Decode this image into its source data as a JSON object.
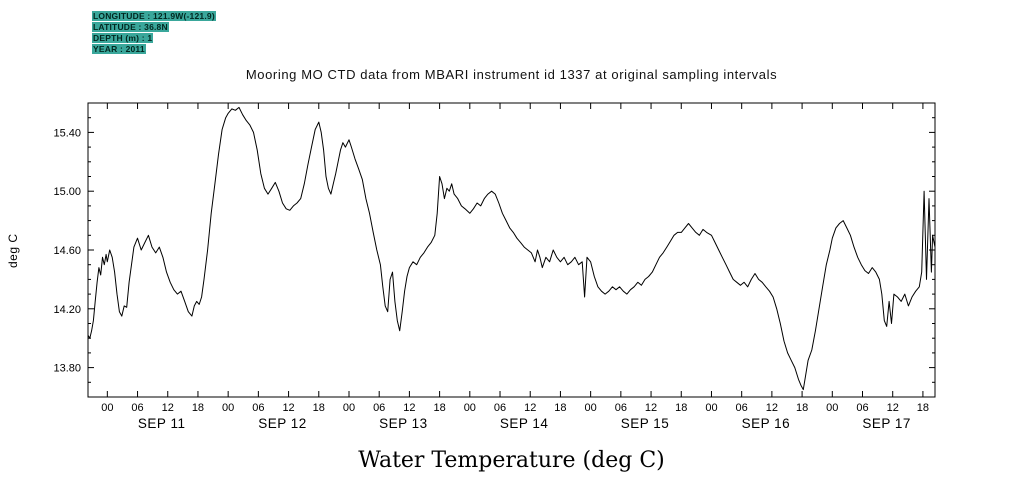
{
  "header": {
    "lines": [
      "LONGITUDE : 121.9W(-121.9)",
      "LATITUDE : 36.8N",
      "DEPTH (m) : 1",
      "YEAR : 2011"
    ]
  },
  "title": "Mooring MO CTD data from MBARI instrument id 1337 at original sampling intervals",
  "chart_data": {
    "type": "line",
    "title": "Mooring MO CTD data from MBARI instrument id 1337 at original sampling intervals",
    "xlabel": "Water Temperature (deg C)",
    "ylabel": "deg C",
    "ylim": [
      13.6,
      15.6
    ],
    "xlim_days": [
      -0.16,
      6.85
    ],
    "grid": false,
    "line_color": "#000000",
    "ytick_values": [
      13.8,
      14.2,
      14.6,
      15.0,
      15.4
    ],
    "hour_labels": [
      "00",
      "06",
      "12",
      "18"
    ],
    "day_labels": [
      "SEP 11",
      "SEP 12",
      "SEP 13",
      "SEP 14",
      "SEP 15",
      "SEP 16",
      "SEP 17"
    ],
    "series": [
      {
        "name": "water_temperature_degC",
        "points": [
          [
            -0.16,
            14.02
          ],
          [
            -0.145,
            14.0
          ],
          [
            -0.13,
            14.05
          ],
          [
            -0.115,
            14.12
          ],
          [
            -0.1,
            14.25
          ],
          [
            -0.085,
            14.38
          ],
          [
            -0.07,
            14.48
          ],
          [
            -0.055,
            14.43
          ],
          [
            -0.04,
            14.55
          ],
          [
            -0.025,
            14.5
          ],
          [
            -0.01,
            14.57
          ],
          [
            0.0,
            14.52
          ],
          [
            0.02,
            14.6
          ],
          [
            0.04,
            14.55
          ],
          [
            0.06,
            14.45
          ],
          [
            0.08,
            14.3
          ],
          [
            0.1,
            14.18
          ],
          [
            0.12,
            14.15
          ],
          [
            0.14,
            14.22
          ],
          [
            0.16,
            14.21
          ],
          [
            0.18,
            14.38
          ],
          [
            0.2,
            14.5
          ],
          [
            0.22,
            14.62
          ],
          [
            0.25,
            14.68
          ],
          [
            0.28,
            14.6
          ],
          [
            0.31,
            14.65
          ],
          [
            0.34,
            14.7
          ],
          [
            0.37,
            14.62
          ],
          [
            0.4,
            14.58
          ],
          [
            0.43,
            14.62
          ],
          [
            0.46,
            14.55
          ],
          [
            0.49,
            14.45
          ],
          [
            0.52,
            14.38
          ],
          [
            0.55,
            14.33
          ],
          [
            0.58,
            14.3
          ],
          [
            0.61,
            14.32
          ],
          [
            0.64,
            14.25
          ],
          [
            0.67,
            14.18
          ],
          [
            0.7,
            14.15
          ],
          [
            0.72,
            14.22
          ],
          [
            0.74,
            14.25
          ],
          [
            0.76,
            14.23
          ],
          [
            0.78,
            14.28
          ],
          [
            0.8,
            14.4
          ],
          [
            0.83,
            14.6
          ],
          [
            0.86,
            14.85
          ],
          [
            0.89,
            15.05
          ],
          [
            0.92,
            15.25
          ],
          [
            0.95,
            15.42
          ],
          [
            0.98,
            15.5
          ],
          [
            1.0,
            15.53
          ],
          [
            1.03,
            15.56
          ],
          [
            1.06,
            15.55
          ],
          [
            1.09,
            15.57
          ],
          [
            1.12,
            15.52
          ],
          [
            1.15,
            15.48
          ],
          [
            1.18,
            15.45
          ],
          [
            1.21,
            15.4
          ],
          [
            1.24,
            15.28
          ],
          [
            1.27,
            15.12
          ],
          [
            1.3,
            15.02
          ],
          [
            1.33,
            14.98
          ],
          [
            1.36,
            15.02
          ],
          [
            1.39,
            15.06
          ],
          [
            1.42,
            15.0
          ],
          [
            1.45,
            14.92
          ],
          [
            1.48,
            14.88
          ],
          [
            1.51,
            14.87
          ],
          [
            1.54,
            14.9
          ],
          [
            1.57,
            14.92
          ],
          [
            1.6,
            14.95
          ],
          [
            1.63,
            15.05
          ],
          [
            1.66,
            15.18
          ],
          [
            1.69,
            15.3
          ],
          [
            1.72,
            15.42
          ],
          [
            1.75,
            15.47
          ],
          [
            1.77,
            15.4
          ],
          [
            1.79,
            15.28
          ],
          [
            1.81,
            15.1
          ],
          [
            1.83,
            15.02
          ],
          [
            1.85,
            14.98
          ],
          [
            1.87,
            15.05
          ],
          [
            1.89,
            15.12
          ],
          [
            1.91,
            15.2
          ],
          [
            1.93,
            15.28
          ],
          [
            1.95,
            15.33
          ],
          [
            1.97,
            15.3
          ],
          [
            2.0,
            15.35
          ],
          [
            2.02,
            15.3
          ],
          [
            2.05,
            15.22
          ],
          [
            2.08,
            15.15
          ],
          [
            2.11,
            15.08
          ],
          [
            2.14,
            14.95
          ],
          [
            2.17,
            14.85
          ],
          [
            2.2,
            14.72
          ],
          [
            2.23,
            14.6
          ],
          [
            2.26,
            14.5
          ],
          [
            2.28,
            14.35
          ],
          [
            2.3,
            14.22
          ],
          [
            2.32,
            14.18
          ],
          [
            2.34,
            14.4
          ],
          [
            2.36,
            14.45
          ],
          [
            2.38,
            14.25
          ],
          [
            2.4,
            14.12
          ],
          [
            2.42,
            14.05
          ],
          [
            2.44,
            14.18
          ],
          [
            2.46,
            14.32
          ],
          [
            2.48,
            14.42
          ],
          [
            2.5,
            14.48
          ],
          [
            2.53,
            14.52
          ],
          [
            2.56,
            14.5
          ],
          [
            2.59,
            14.55
          ],
          [
            2.62,
            14.58
          ],
          [
            2.65,
            14.62
          ],
          [
            2.68,
            14.65
          ],
          [
            2.71,
            14.7
          ],
          [
            2.73,
            14.85
          ],
          [
            2.75,
            15.1
          ],
          [
            2.77,
            15.05
          ],
          [
            2.79,
            14.95
          ],
          [
            2.81,
            15.02
          ],
          [
            2.83,
            15.0
          ],
          [
            2.85,
            15.05
          ],
          [
            2.87,
            14.98
          ],
          [
            2.9,
            14.95
          ],
          [
            2.93,
            14.9
          ],
          [
            2.96,
            14.88
          ],
          [
            3.0,
            14.85
          ],
          [
            3.03,
            14.88
          ],
          [
            3.06,
            14.92
          ],
          [
            3.09,
            14.9
          ],
          [
            3.12,
            14.95
          ],
          [
            3.15,
            14.98
          ],
          [
            3.18,
            15.0
          ],
          [
            3.21,
            14.98
          ],
          [
            3.24,
            14.92
          ],
          [
            3.27,
            14.85
          ],
          [
            3.3,
            14.8
          ],
          [
            3.33,
            14.75
          ],
          [
            3.36,
            14.72
          ],
          [
            3.39,
            14.68
          ],
          [
            3.42,
            14.65
          ],
          [
            3.45,
            14.62
          ],
          [
            3.48,
            14.6
          ],
          [
            3.51,
            14.58
          ],
          [
            3.54,
            14.52
          ],
          [
            3.56,
            14.6
          ],
          [
            3.58,
            14.55
          ],
          [
            3.6,
            14.48
          ],
          [
            3.63,
            14.55
          ],
          [
            3.66,
            14.52
          ],
          [
            3.69,
            14.6
          ],
          [
            3.72,
            14.55
          ],
          [
            3.75,
            14.52
          ],
          [
            3.78,
            14.55
          ],
          [
            3.81,
            14.5
          ],
          [
            3.84,
            14.52
          ],
          [
            3.87,
            14.55
          ],
          [
            3.9,
            14.5
          ],
          [
            3.93,
            14.52
          ],
          [
            3.95,
            14.28
          ],
          [
            3.97,
            14.55
          ],
          [
            4.0,
            14.52
          ],
          [
            4.03,
            14.42
          ],
          [
            4.06,
            14.35
          ],
          [
            4.09,
            14.32
          ],
          [
            4.12,
            14.3
          ],
          [
            4.15,
            14.32
          ],
          [
            4.18,
            14.35
          ],
          [
            4.21,
            14.33
          ],
          [
            4.24,
            14.35
          ],
          [
            4.27,
            14.32
          ],
          [
            4.3,
            14.3
          ],
          [
            4.33,
            14.33
          ],
          [
            4.36,
            14.35
          ],
          [
            4.39,
            14.38
          ],
          [
            4.42,
            14.36
          ],
          [
            4.45,
            14.4
          ],
          [
            4.48,
            14.42
          ],
          [
            4.51,
            14.45
          ],
          [
            4.54,
            14.5
          ],
          [
            4.57,
            14.55
          ],
          [
            4.6,
            14.58
          ],
          [
            4.63,
            14.62
          ],
          [
            4.66,
            14.66
          ],
          [
            4.69,
            14.7
          ],
          [
            4.72,
            14.72
          ],
          [
            4.75,
            14.72
          ],
          [
            4.78,
            14.75
          ],
          [
            4.81,
            14.78
          ],
          [
            4.84,
            14.75
          ],
          [
            4.87,
            14.72
          ],
          [
            4.9,
            14.7
          ],
          [
            4.93,
            14.74
          ],
          [
            4.96,
            14.72
          ],
          [
            5.0,
            14.7
          ],
          [
            5.03,
            14.65
          ],
          [
            5.06,
            14.6
          ],
          [
            5.09,
            14.55
          ],
          [
            5.12,
            14.5
          ],
          [
            5.15,
            14.45
          ],
          [
            5.18,
            14.4
          ],
          [
            5.21,
            14.38
          ],
          [
            5.24,
            14.36
          ],
          [
            5.27,
            14.38
          ],
          [
            5.3,
            14.35
          ],
          [
            5.33,
            14.4
          ],
          [
            5.36,
            14.44
          ],
          [
            5.39,
            14.4
          ],
          [
            5.42,
            14.38
          ],
          [
            5.45,
            14.35
          ],
          [
            5.48,
            14.32
          ],
          [
            5.51,
            14.28
          ],
          [
            5.54,
            14.2
          ],
          [
            5.57,
            14.1
          ],
          [
            5.6,
            13.98
          ],
          [
            5.63,
            13.9
          ],
          [
            5.66,
            13.85
          ],
          [
            5.69,
            13.8
          ],
          [
            5.72,
            13.72
          ],
          [
            5.74,
            13.68
          ],
          [
            5.76,
            13.65
          ],
          [
            5.78,
            13.75
          ],
          [
            5.8,
            13.85
          ],
          [
            5.83,
            13.92
          ],
          [
            5.86,
            14.05
          ],
          [
            5.89,
            14.2
          ],
          [
            5.92,
            14.35
          ],
          [
            5.95,
            14.5
          ],
          [
            5.98,
            14.6
          ],
          [
            6.0,
            14.68
          ],
          [
            6.03,
            14.75
          ],
          [
            6.06,
            14.78
          ],
          [
            6.09,
            14.8
          ],
          [
            6.12,
            14.75
          ],
          [
            6.15,
            14.7
          ],
          [
            6.18,
            14.62
          ],
          [
            6.21,
            14.55
          ],
          [
            6.24,
            14.5
          ],
          [
            6.27,
            14.46
          ],
          [
            6.3,
            14.44
          ],
          [
            6.33,
            14.48
          ],
          [
            6.36,
            14.45
          ],
          [
            6.39,
            14.4
          ],
          [
            6.41,
            14.3
          ],
          [
            6.43,
            14.12
          ],
          [
            6.45,
            14.08
          ],
          [
            6.47,
            14.25
          ],
          [
            6.49,
            14.1
          ],
          [
            6.51,
            14.3
          ],
          [
            6.54,
            14.28
          ],
          [
            6.57,
            14.25
          ],
          [
            6.6,
            14.3
          ],
          [
            6.63,
            14.22
          ],
          [
            6.66,
            14.28
          ],
          [
            6.69,
            14.32
          ],
          [
            6.72,
            14.35
          ],
          [
            6.74,
            14.45
          ],
          [
            6.76,
            15.0
          ],
          [
            6.78,
            14.4
          ],
          [
            6.8,
            14.95
          ],
          [
            6.82,
            14.45
          ],
          [
            6.83,
            14.7
          ],
          [
            6.85,
            14.62
          ]
        ]
      }
    ]
  }
}
